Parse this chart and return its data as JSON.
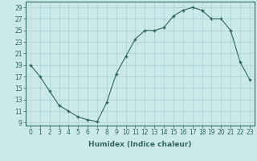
{
  "x": [
    0,
    1,
    2,
    3,
    4,
    5,
    6,
    7,
    8,
    9,
    10,
    11,
    12,
    13,
    14,
    15,
    16,
    17,
    18,
    19,
    20,
    21,
    22,
    23
  ],
  "y": [
    19,
    17,
    14.5,
    12,
    11,
    10,
    9.5,
    9.2,
    12.5,
    17.5,
    20.5,
    23.5,
    25,
    25,
    25.5,
    27.5,
    28.5,
    29,
    28.5,
    27,
    27,
    25,
    19.5,
    16.5
  ],
  "line_color": "#2d6b5e",
  "bg_color": "#cce9e9",
  "grid_color": "#aad0d0",
  "xlabel": "Humidex (Indice chaleur)",
  "xlim": [
    -0.5,
    23.5
  ],
  "ylim": [
    8.5,
    30
  ],
  "yticks": [
    9,
    11,
    13,
    15,
    17,
    19,
    21,
    23,
    25,
    27,
    29
  ],
  "xticks": [
    0,
    1,
    2,
    3,
    4,
    5,
    6,
    7,
    8,
    9,
    10,
    11,
    12,
    13,
    14,
    15,
    16,
    17,
    18,
    19,
    20,
    21,
    22,
    23
  ],
  "tick_fontsize": 5.5,
  "label_fontsize": 6.5
}
